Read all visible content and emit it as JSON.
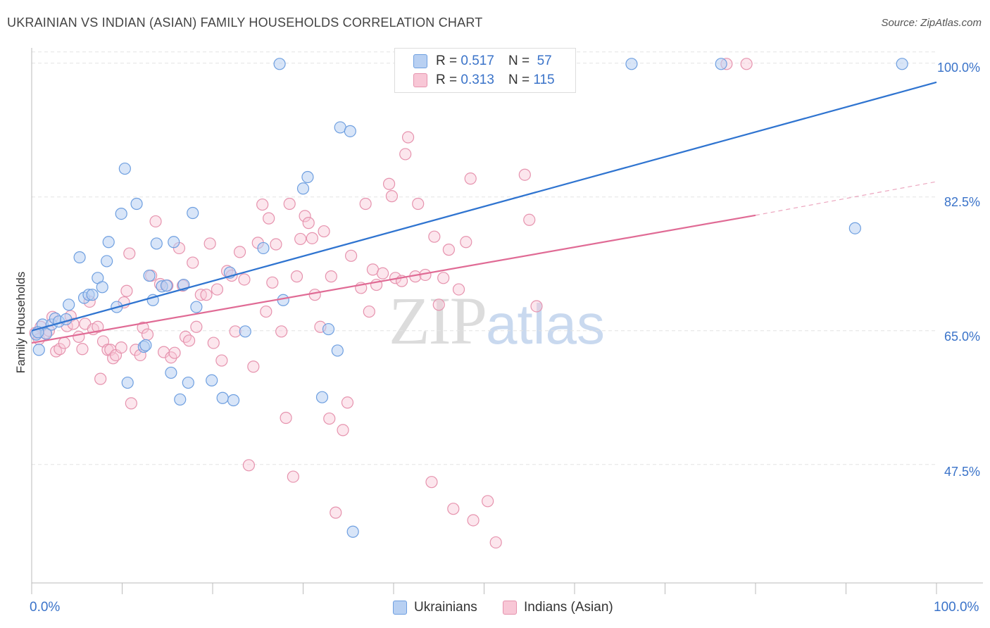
{
  "header": {
    "title": "UKRAINIAN VS INDIAN (ASIAN) FAMILY HOUSEHOLDS CORRELATION CHART",
    "source": "Source: ZipAtlas.com"
  },
  "legend": {
    "ukrainians": {
      "r_label": "R =",
      "r_value": "0.517",
      "n_label": "N =",
      "n_value": "57"
    },
    "indians": {
      "r_label": "R =",
      "r_value": "0.313",
      "n_label": "N =",
      "n_value": "115"
    }
  },
  "bottom_legend": {
    "ukrainians": "Ukrainians",
    "indians": "Indians (Asian)"
  },
  "watermark": {
    "zip": "ZIP",
    "atlas": "atlas"
  },
  "chart_data": {
    "type": "scatter",
    "title": "UKRAINIAN VS INDIAN (ASIAN) FAMILY HOUSEHOLDS CORRELATION CHART",
    "xlabel": "",
    "ylabel": "Family Households",
    "xlim": [
      0,
      100
    ],
    "ylim": [
      32,
      102
    ],
    "x_tick_labels": [
      "0.0%",
      "100.0%"
    ],
    "y_ticks": [
      47.5,
      65.0,
      82.5,
      100.0
    ],
    "y_tick_labels": [
      "47.5%",
      "65.0%",
      "82.5%",
      "100.0%"
    ],
    "grid": true,
    "legend_position": "top-center",
    "colors": {
      "ukrainians": "#6e9fe0",
      "ukrainians_fill": "#b8d0f2",
      "ukrainians_line": "#2f74d0",
      "indians": "#e693ae",
      "indians_fill": "#f8c7d6",
      "indians_line": "#e06b95"
    },
    "series": [
      {
        "name": "Ukrainians",
        "points": [
          [
            0.5,
            64.5
          ],
          [
            0.8,
            62.5
          ],
          [
            1.2,
            65.8
          ],
          [
            1.6,
            64.6
          ],
          [
            2.2,
            65.8
          ],
          [
            2.6,
            66.6
          ],
          [
            3.0,
            66.2
          ],
          [
            3.8,
            66.5
          ],
          [
            4.1,
            68.4
          ],
          [
            5.3,
            74.6
          ],
          [
            5.8,
            69.3
          ],
          [
            6.3,
            69.7
          ],
          [
            6.7,
            69.7
          ],
          [
            7.3,
            71.9
          ],
          [
            7.8,
            70.7
          ],
          [
            8.3,
            74.1
          ],
          [
            8.5,
            76.6
          ],
          [
            9.4,
            68.1
          ],
          [
            9.9,
            80.3
          ],
          [
            10.3,
            86.2
          ],
          [
            10.6,
            58.2
          ],
          [
            11.6,
            81.6
          ],
          [
            12.4,
            62.9
          ],
          [
            12.6,
            63.1
          ],
          [
            13.0,
            72.2
          ],
          [
            13.4,
            69.0
          ],
          [
            13.8,
            76.4
          ],
          [
            14.4,
            70.8
          ],
          [
            14.9,
            70.9
          ],
          [
            15.4,
            59.5
          ],
          [
            15.7,
            76.6
          ],
          [
            16.4,
            56.0
          ],
          [
            16.8,
            71.0
          ],
          [
            17.3,
            58.2
          ],
          [
            17.8,
            80.4
          ],
          [
            18.2,
            68.1
          ],
          [
            19.9,
            58.5
          ],
          [
            21.1,
            56.2
          ],
          [
            21.9,
            72.6
          ],
          [
            22.3,
            55.9
          ],
          [
            23.6,
            64.9
          ],
          [
            25.6,
            75.8
          ],
          [
            27.4,
            99.9
          ],
          [
            27.8,
            69.0
          ],
          [
            30.0,
            83.6
          ],
          [
            30.5,
            85.1
          ],
          [
            32.1,
            56.3
          ],
          [
            32.8,
            65.2
          ],
          [
            33.8,
            62.4
          ],
          [
            34.1,
            91.6
          ],
          [
            35.2,
            91.1
          ],
          [
            35.5,
            38.7
          ],
          [
            66.3,
            99.9
          ],
          [
            76.2,
            99.9
          ],
          [
            91.0,
            78.4
          ],
          [
            96.2,
            99.9
          ],
          [
            0.7,
            64.8
          ]
        ],
        "trend": {
          "x": [
            0,
            100
          ],
          "y": [
            65.0,
            97.5
          ]
        }
      },
      {
        "name": "Indians (Asian)",
        "points": [
          [
            0.4,
            64.7
          ],
          [
            0.8,
            63.9
          ],
          [
            1.0,
            65.5
          ],
          [
            1.5,
            64.7
          ],
          [
            1.9,
            65.0
          ],
          [
            2.3,
            66.8
          ],
          [
            2.7,
            62.3
          ],
          [
            3.1,
            62.6
          ],
          [
            3.6,
            63.4
          ],
          [
            3.9,
            65.6
          ],
          [
            4.3,
            66.9
          ],
          [
            4.6,
            65.9
          ],
          [
            5.2,
            64.2
          ],
          [
            5.6,
            62.6
          ],
          [
            5.9,
            65.9
          ],
          [
            6.4,
            68.8
          ],
          [
            6.8,
            65.2
          ],
          [
            7.3,
            65.5
          ],
          [
            7.6,
            58.7
          ],
          [
            7.9,
            63.6
          ],
          [
            8.4,
            62.5
          ],
          [
            8.7,
            62.5
          ],
          [
            9.0,
            61.4
          ],
          [
            9.3,
            61.8
          ],
          [
            9.9,
            62.8
          ],
          [
            10.2,
            68.7
          ],
          [
            10.5,
            70.2
          ],
          [
            10.8,
            75.1
          ],
          [
            11.0,
            55.5
          ],
          [
            11.5,
            62.5
          ],
          [
            12.0,
            61.8
          ],
          [
            12.3,
            65.4
          ],
          [
            12.8,
            64.5
          ],
          [
            13.2,
            72.2
          ],
          [
            13.7,
            79.3
          ],
          [
            14.2,
            71.1
          ],
          [
            14.6,
            62.2
          ],
          [
            15.0,
            70.9
          ],
          [
            15.4,
            61.5
          ],
          [
            15.8,
            62.1
          ],
          [
            16.3,
            75.8
          ],
          [
            16.7,
            70.9
          ],
          [
            17.0,
            64.2
          ],
          [
            17.4,
            63.7
          ],
          [
            17.8,
            73.9
          ],
          [
            18.2,
            65.5
          ],
          [
            18.7,
            69.7
          ],
          [
            19.3,
            69.7
          ],
          [
            19.7,
            76.4
          ],
          [
            20.1,
            63.4
          ],
          [
            20.5,
            70.4
          ],
          [
            21.0,
            61.1
          ],
          [
            21.6,
            72.8
          ],
          [
            22.1,
            72.2
          ],
          [
            22.5,
            64.9
          ],
          [
            23.0,
            75.3
          ],
          [
            23.5,
            71.7
          ],
          [
            24.0,
            47.4
          ],
          [
            24.5,
            60.3
          ],
          [
            25.0,
            76.5
          ],
          [
            25.5,
            81.5
          ],
          [
            25.9,
            67.5
          ],
          [
            26.2,
            79.7
          ],
          [
            26.6,
            71.3
          ],
          [
            27.0,
            76.3
          ],
          [
            27.6,
            64.9
          ],
          [
            28.1,
            53.6
          ],
          [
            28.5,
            81.6
          ],
          [
            28.9,
            45.9
          ],
          [
            29.3,
            72.1
          ],
          [
            29.7,
            77.0
          ],
          [
            30.2,
            80.0
          ],
          [
            30.6,
            79.1
          ],
          [
            31.0,
            77.1
          ],
          [
            31.3,
            69.7
          ],
          [
            31.9,
            65.5
          ],
          [
            32.3,
            78.0
          ],
          [
            32.9,
            53.5
          ],
          [
            33.1,
            72.1
          ],
          [
            33.6,
            41.2
          ],
          [
            34.4,
            52.0
          ],
          [
            34.9,
            55.6
          ],
          [
            35.3,
            74.8
          ],
          [
            36.4,
            70.6
          ],
          [
            36.9,
            81.6
          ],
          [
            37.3,
            67.5
          ],
          [
            37.7,
            73.0
          ],
          [
            38.1,
            71.0
          ],
          [
            38.8,
            72.5
          ],
          [
            39.5,
            84.2
          ],
          [
            39.8,
            82.6
          ],
          [
            40.2,
            71.9
          ],
          [
            40.9,
            71.5
          ],
          [
            41.3,
            88.1
          ],
          [
            41.6,
            90.3
          ],
          [
            42.4,
            72.1
          ],
          [
            42.7,
            81.6
          ],
          [
            43.5,
            72.3
          ],
          [
            44.2,
            45.2
          ],
          [
            44.5,
            77.3
          ],
          [
            45.0,
            68.4
          ],
          [
            45.5,
            71.9
          ],
          [
            46.1,
            75.6
          ],
          [
            46.6,
            41.7
          ],
          [
            47.2,
            70.4
          ],
          [
            48.0,
            76.6
          ],
          [
            48.5,
            84.9
          ],
          [
            48.8,
            40.2
          ],
          [
            50.4,
            42.7
          ],
          [
            51.3,
            37.3
          ],
          [
            54.5,
            85.4
          ],
          [
            55.0,
            79.5
          ],
          [
            55.8,
            68.2
          ],
          [
            76.8,
            99.9
          ],
          [
            79.0,
            99.9
          ]
        ],
        "trend": {
          "x": [
            0,
            80
          ],
          "y": [
            63.4,
            80.1
          ]
        },
        "trend_extension": {
          "x": [
            80,
            100
          ],
          "y": [
            80.1,
            84.5
          ]
        }
      }
    ]
  }
}
